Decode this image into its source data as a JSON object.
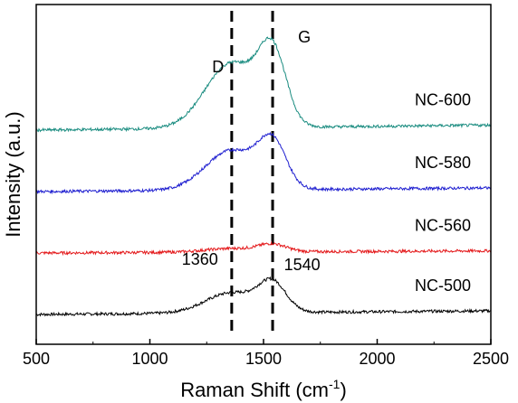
{
  "chart_data": {
    "type": "line",
    "title": "",
    "xlabel": "Raman Shift (cm",
    "xlabel_superscript": "-1",
    "xlabel_suffix": ")",
    "ylabel": "Intensity (a.u.)",
    "xlim": [
      500,
      2500
    ],
    "xticks": [
      "500",
      "1000",
      "1500",
      "2000",
      "2500"
    ],
    "y_ticks_labeled": false,
    "grid": false,
    "legend": "none; each series labelled at its right end",
    "reference_lines": [
      {
        "x": 1360,
        "style": "dashed"
      },
      {
        "x": 1540,
        "style": "dashed"
      }
    ],
    "annotations": [
      {
        "text": "D",
        "x": 1300
      },
      {
        "text": "G",
        "x": 1680
      },
      {
        "text": "1360",
        "x": 1220
      },
      {
        "text": "1540",
        "x": 1670
      }
    ],
    "series": [
      {
        "name": "NC-500",
        "color": "#000000",
        "baseline": 0.0,
        "d_peak": 0.28,
        "g_peak": 0.38,
        "end": 0.05
      },
      {
        "name": "NC-560",
        "color": "#e41a1c",
        "baseline": 0.85,
        "d_peak": 0.9,
        "g_peak": 0.95,
        "end": 0.88
      },
      {
        "name": "NC-580",
        "color": "#1f1fd0",
        "baseline": 1.7,
        "d_peak": 2.25,
        "g_peak": 2.3,
        "end": 1.75
      },
      {
        "name": "NC-600",
        "color": "#1a8c80",
        "baseline": 2.55,
        "d_peak": 3.45,
        "g_peak": 3.5,
        "end": 2.62
      }
    ]
  }
}
